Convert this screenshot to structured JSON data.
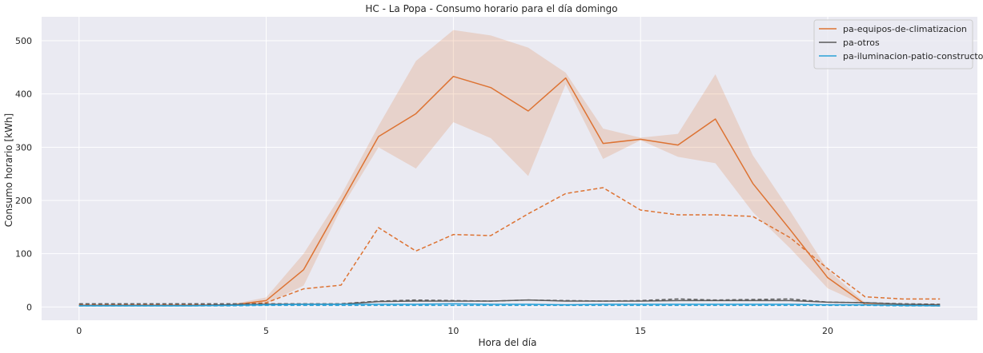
{
  "chart_data": {
    "type": "line",
    "title": "HC - La Popa - Consumo horario para el día domingo",
    "xlabel": "Hora del día",
    "ylabel": "Consumo horario [kWh]",
    "xlim": [
      -1,
      24
    ],
    "ylim": [
      -25,
      545
    ],
    "xticks": [
      0,
      5,
      10,
      15,
      20
    ],
    "yticks": [
      0,
      100,
      200,
      300,
      400,
      500
    ],
    "grid": true,
    "legend_position": "top-right",
    "x": [
      0,
      1,
      2,
      3,
      4,
      5,
      6,
      7,
      8,
      9,
      10,
      11,
      12,
      13,
      14,
      15,
      16,
      17,
      18,
      19,
      20,
      21,
      22,
      23
    ],
    "series": [
      {
        "name": "pa-equipos-de-climatizacion",
        "color": "#dd7333",
        "style": "solid",
        "values": [
          3,
          3,
          3,
          3,
          3,
          12,
          70,
          195,
          320,
          363,
          433,
          412,
          368,
          430,
          307,
          315,
          304,
          353,
          232,
          145,
          55,
          5,
          3,
          2
        ],
        "band_low": [
          2,
          2,
          2,
          2,
          2,
          6,
          40,
          185,
          300,
          260,
          347,
          317,
          246,
          418,
          278,
          313,
          282,
          270,
          178,
          110,
          35,
          3,
          2,
          1
        ],
        "band_high": [
          4,
          4,
          4,
          4,
          4,
          18,
          100,
          210,
          340,
          462,
          520,
          510,
          487,
          440,
          335,
          318,
          325,
          437,
          285,
          180,
          70,
          8,
          4,
          3
        ],
        "band_opacity": 0.2
      },
      {
        "name": "",
        "color": "#dd7333",
        "style": "dashed",
        "values": [
          4,
          4,
          4,
          4,
          4,
          8,
          34,
          41,
          149,
          105,
          136,
          134,
          175,
          213,
          224,
          182,
          173,
          173,
          170,
          130,
          72,
          19,
          15,
          15
        ]
      },
      {
        "name": "pa-otros",
        "color": "#5b5b5b",
        "style": "solid",
        "values": [
          3,
          3,
          3,
          3,
          4,
          5,
          5,
          5,
          10,
          11,
          11,
          11,
          13,
          11,
          11,
          11,
          12,
          12,
          12,
          12,
          9,
          8,
          5,
          4
        ]
      },
      {
        "name": "",
        "color": "#5b5b5b",
        "style": "dashed",
        "values": [
          6,
          6,
          6,
          6,
          6,
          6,
          6,
          6,
          11,
          13,
          12,
          11,
          13,
          12,
          11,
          12,
          15,
          13,
          14,
          15,
          9,
          8,
          6,
          5
        ]
      },
      {
        "name": "pa-iluminacion-patio-constructor",
        "color": "#2aa1d8",
        "style": "solid",
        "values": [
          2,
          2,
          2,
          2,
          3,
          4,
          5,
          5,
          5,
          5,
          6,
          5,
          5,
          4,
          5,
          5,
          5,
          5,
          5,
          5,
          4,
          4,
          3,
          2
        ]
      },
      {
        "name": "",
        "color": "#2aa1d8",
        "style": "dashed",
        "values": [
          2,
          2,
          2,
          2,
          2,
          3,
          3,
          3,
          3,
          3,
          3,
          3,
          3,
          3,
          3,
          3,
          3,
          3,
          3,
          3,
          3,
          3,
          2,
          2
        ]
      }
    ]
  }
}
